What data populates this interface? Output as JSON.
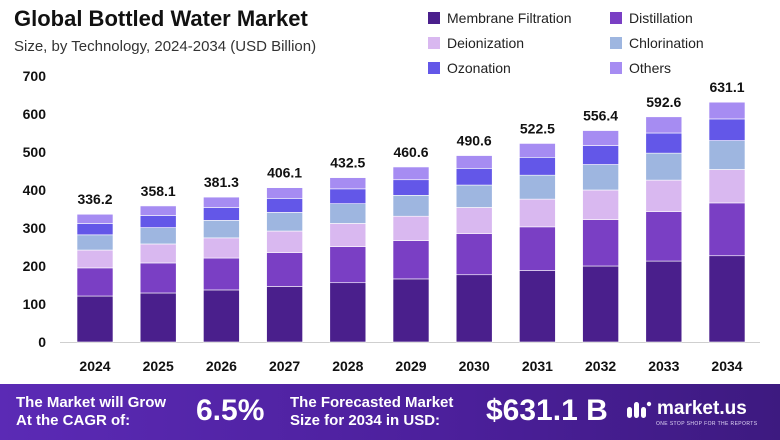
{
  "chart_data": {
    "type": "bar",
    "stacked": true,
    "title": "Global Bottled Water Market",
    "subtitle": "Size, by Technology, 2024-2034 (USD Billion)",
    "categories": [
      "2024",
      "2025",
      "2026",
      "2027",
      "2028",
      "2029",
      "2030",
      "2031",
      "2032",
      "2033",
      "2034"
    ],
    "totals": [
      "336.2",
      "358.1",
      "381.3",
      "406.1",
      "432.5",
      "460.6",
      "490.6",
      "522.5",
      "556.4",
      "592.6",
      "631.1"
    ],
    "y_ticks": [
      "0",
      "100",
      "200",
      "300",
      "400",
      "500",
      "600",
      "700"
    ],
    "ylim": [
      0,
      700
    ],
    "grid": false,
    "legend_position": "top-right",
    "series": [
      {
        "name": "Membrane Filtration",
        "color": "#4a1f8c",
        "values": [
          121,
          129,
          137,
          146,
          156,
          166,
          177,
          188,
          200,
          213,
          227
        ]
      },
      {
        "name": "Distillation",
        "color": "#7a3fc4",
        "values": [
          74,
          79,
          84,
          89,
          95,
          101,
          108,
          115,
          122,
          130,
          139
        ]
      },
      {
        "name": "Deionization",
        "color": "#d9b8f0",
        "values": [
          47,
          50,
          53,
          57,
          61,
          64,
          69,
          73,
          78,
          83,
          88
        ]
      },
      {
        "name": "Chlorination",
        "color": "#9eb6e0",
        "values": [
          40,
          43,
          46,
          49,
          52,
          55,
          59,
          63,
          67,
          71,
          76
        ]
      },
      {
        "name": "Ozonation",
        "color": "#6357e8",
        "values": [
          30,
          32,
          34,
          37,
          39,
          41,
          44,
          47,
          50,
          53,
          57
        ]
      },
      {
        "name": "Others",
        "color": "#a68cf2",
        "values": [
          24.2,
          25.1,
          27.3,
          28.1,
          29.5,
          33.6,
          33.6,
          36.5,
          39.4,
          42.6,
          44.1
        ]
      }
    ]
  },
  "footer": {
    "cagr_label_line1": "The Market will Grow",
    "cagr_label_line2": "At the CAGR of:",
    "cagr_value": "6.5%",
    "forecast_label_line1": "The Forecasted Market",
    "forecast_label_line2": "Size for 2034 in USD:",
    "forecast_value": "$631.1 B",
    "logo_text": "market.us",
    "logo_tagline": "ONE STOP SHOP FOR THE REPORTS",
    "logo_icon": "market-us-logo-icon"
  }
}
